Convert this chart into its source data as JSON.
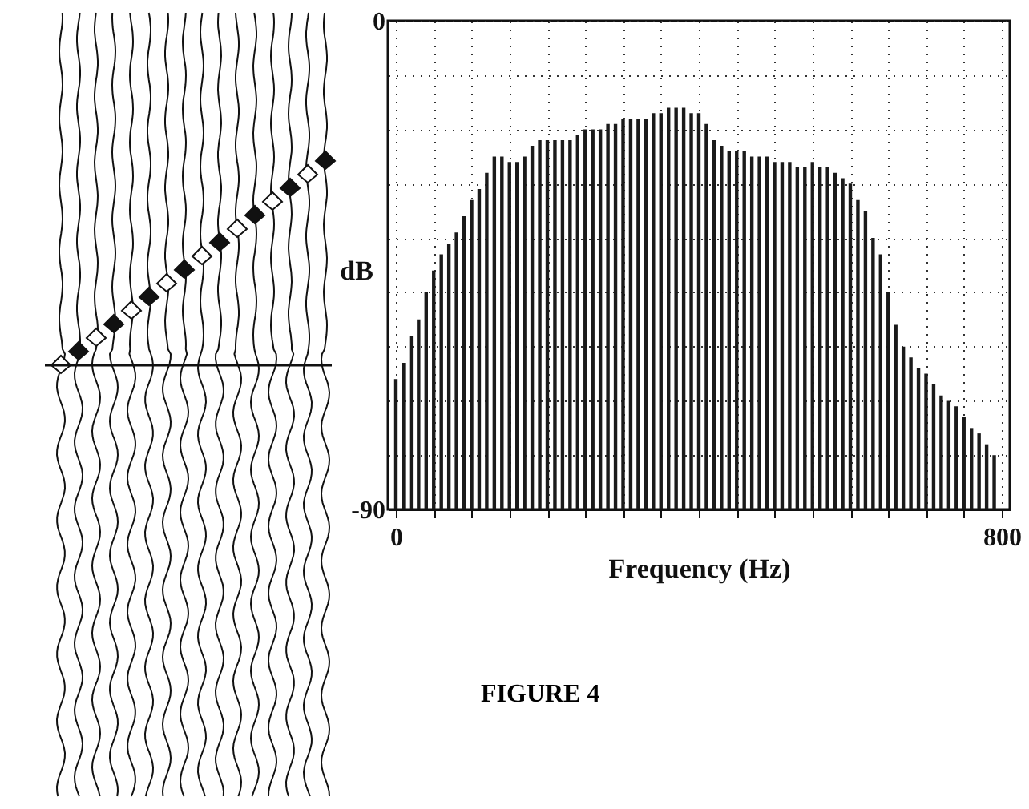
{
  "chart_data": {
    "type": "bar",
    "xlabel": "Frequency (Hz)",
    "ylabel": "dB",
    "annotations": [
      "FIGURE 4"
    ],
    "x": [
      0,
      10,
      20,
      30,
      40,
      50,
      60,
      70,
      80,
      90,
      100,
      110,
      120,
      130,
      140,
      150,
      160,
      170,
      180,
      190,
      200,
      210,
      220,
      230,
      240,
      250,
      260,
      270,
      280,
      290,
      300,
      310,
      320,
      330,
      340,
      350,
      360,
      370,
      380,
      390,
      400,
      410,
      420,
      430,
      440,
      450,
      460,
      470,
      480,
      490,
      500,
      510,
      520,
      530,
      540,
      550,
      560,
      570,
      580,
      590,
      600,
      610,
      620,
      630,
      640,
      650,
      660,
      670,
      680,
      690,
      700,
      710,
      720,
      730,
      740,
      750,
      760,
      770,
      780,
      790
    ],
    "base": [
      -90,
      -90,
      -90,
      -90,
      -90,
      -90,
      -90,
      -90,
      -90,
      -90,
      -90,
      -90,
      -90,
      -90,
      -90,
      -90,
      -90,
      -90,
      -90,
      -90,
      -90,
      -90,
      -90,
      -90,
      -90,
      -90,
      -90,
      -90,
      -90,
      -90,
      -90,
      -90,
      -90,
      -90,
      -90,
      -90,
      -90,
      -90,
      -90,
      -90,
      -90,
      -90,
      -90,
      -90,
      -90,
      -90,
      -90,
      -90,
      -90,
      -90,
      -90,
      -90,
      -90,
      -90,
      -90,
      -90,
      -90,
      -90,
      -90,
      -90,
      -90,
      -90,
      -90,
      -90,
      -90,
      -90,
      -90,
      -90,
      -90,
      -90,
      -90,
      -90,
      -90,
      -90,
      -90,
      -90,
      -90,
      -90,
      -90,
      -90
    ],
    "values": [
      24,
      27,
      32,
      35,
      40,
      44,
      47,
      49,
      51,
      54,
      57,
      59,
      62,
      65,
      65,
      64,
      64,
      65,
      67,
      68,
      68,
      68,
      68,
      68,
      69,
      70,
      70,
      70,
      71,
      71,
      72,
      72,
      72,
      72,
      73,
      73,
      74,
      74,
      74,
      73,
      73,
      71,
      68,
      67,
      66,
      66,
      66,
      65,
      65,
      65,
      64,
      64,
      64,
      63,
      63,
      64,
      63,
      63,
      62,
      61,
      60,
      57,
      55,
      50,
      47,
      40,
      34,
      30,
      28,
      26,
      25,
      23,
      21,
      20,
      19,
      17,
      15,
      14,
      12,
      10
    ],
    "color": "#1a1a1a",
    "xlim": [
      0,
      800
    ],
    "xticks": [
      0,
      {
        "value": 50,
        "label": null
      },
      {
        "value": 100,
        "label": null
      },
      {
        "value": 150,
        "label": null
      },
      {
        "value": 200,
        "label": null
      },
      {
        "value": 250,
        "label": null
      },
      {
        "value": 300,
        "label": null
      },
      {
        "value": 350,
        "label": null
      },
      {
        "value": 400,
        "label": null
      },
      {
        "value": 450,
        "label": null
      },
      {
        "value": 500,
        "label": null
      },
      {
        "value": 550,
        "label": null
      },
      {
        "value": 600,
        "label": null
      },
      {
        "value": 650,
        "label": null
      },
      {
        "value": 700,
        "label": null
      },
      {
        "value": 750,
        "label": null
      },
      800
    ],
    "ylim": [
      -90,
      0
    ],
    "yticks": [
      -90,
      {
        "value": -80,
        "label": null
      },
      {
        "value": -70,
        "label": null
      },
      {
        "value": -60,
        "label": null
      },
      {
        "value": -50,
        "label": null
      },
      {
        "value": -40,
        "label": null
      },
      {
        "value": -30,
        "label": null
      },
      {
        "value": -20,
        "label": null
      },
      {
        "value": -10,
        "label": null
      },
      0
    ],
    "grid": true
  }
}
